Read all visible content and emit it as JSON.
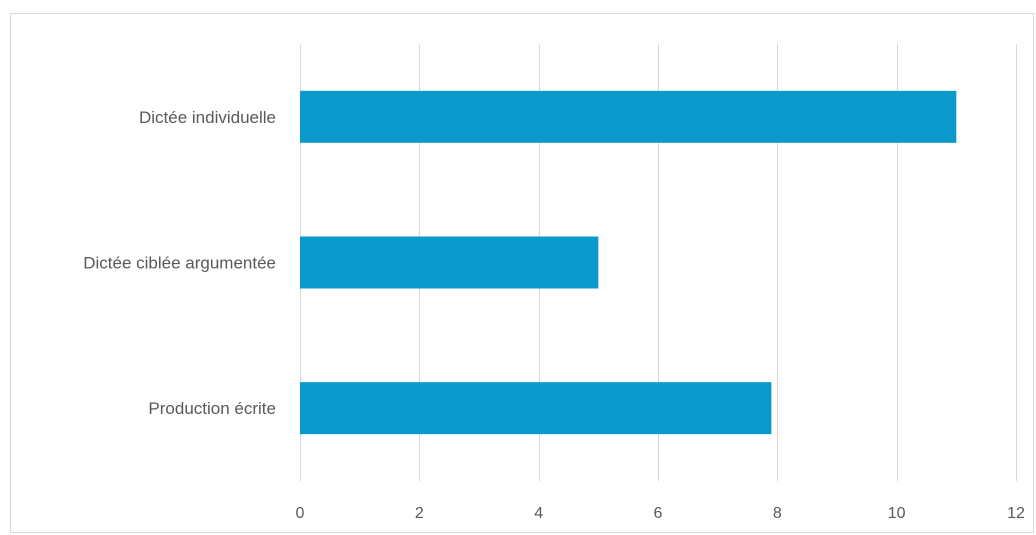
{
  "chart_data": {
    "type": "bar",
    "orientation": "horizontal",
    "categories": [
      "Dictée individuelle",
      "Dictée ciblée argumentée",
      "Production écrite"
    ],
    "values": [
      11,
      5,
      7.9
    ],
    "xlim": [
      0,
      12
    ],
    "xticks": [
      0,
      2,
      4,
      6,
      8,
      10,
      12
    ],
    "grid": true,
    "legend": "none",
    "bar_color": "#0999cc",
    "title": "",
    "xlabel": "",
    "ylabel": ""
  }
}
